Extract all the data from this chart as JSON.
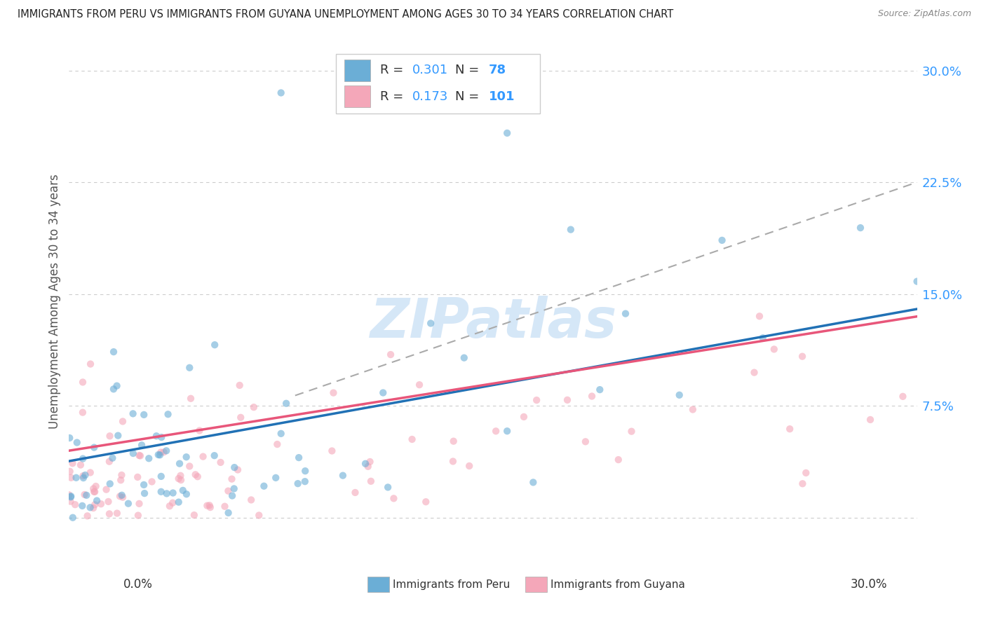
{
  "title": "IMMIGRANTS FROM PERU VS IMMIGRANTS FROM GUYANA UNEMPLOYMENT AMONG AGES 30 TO 34 YEARS CORRELATION CHART",
  "source": "Source: ZipAtlas.com",
  "ylabel": "Unemployment Among Ages 30 to 34 years",
  "xlim": [
    0.0,
    0.3
  ],
  "ylim": [
    -0.03,
    0.32
  ],
  "yticks": [
    0.0,
    0.075,
    0.15,
    0.225,
    0.3
  ],
  "ytick_labels": [
    "",
    "7.5%",
    "15.0%",
    "22.5%",
    "30.0%"
  ],
  "peru_color": "#6baed6",
  "guyana_color": "#f4a7b9",
  "peru_R": 0.301,
  "peru_N": 78,
  "guyana_R": 0.173,
  "guyana_N": 101,
  "background_color": "#ffffff",
  "grid_color": "#cccccc",
  "peru_line_color": "#2171b5",
  "guyana_line_color": "#e8567a",
  "peru_line_style": "solid",
  "guyana_line_style": "solid",
  "dashed_line_color": "#aaaaaa",
  "label_color": "#3399ff",
  "watermark_color": "#c8dff5"
}
